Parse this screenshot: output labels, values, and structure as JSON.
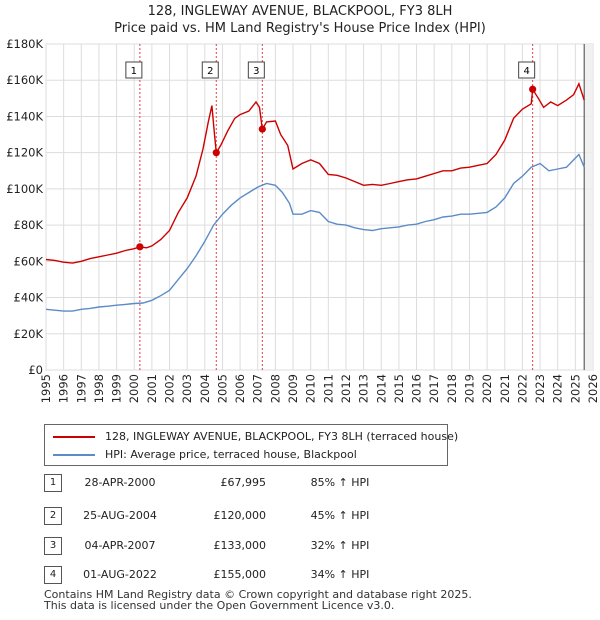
{
  "chart_data": {
    "type": "line",
    "title": "128, INGLEWAY AVENUE, BLACKPOOL, FY3 8LH",
    "subtitle": "Price paid vs. HM Land Registry's House Price Index (HPI)",
    "xlim": [
      1995,
      2026
    ],
    "ylim": [
      0,
      180000
    ],
    "x_ticks": [
      1995,
      1996,
      1997,
      1998,
      1999,
      2000,
      2001,
      2002,
      2003,
      2004,
      2005,
      2006,
      2007,
      2008,
      2009,
      2010,
      2011,
      2012,
      2013,
      2014,
      2015,
      2016,
      2017,
      2018,
      2019,
      2020,
      2021,
      2022,
      2023,
      2024,
      2025,
      2026
    ],
    "y_ticks": [
      {
        "value": 0,
        "label": "£0"
      },
      {
        "value": 20000,
        "label": "£20K"
      },
      {
        "value": 40000,
        "label": "£40K"
      },
      {
        "value": 60000,
        "label": "£60K"
      },
      {
        "value": 80000,
        "label": "£80K"
      },
      {
        "value": 100000,
        "label": "£100K"
      },
      {
        "value": 120000,
        "label": "£120K"
      },
      {
        "value": 140000,
        "label": "£140K"
      },
      {
        "value": 160000,
        "label": "£160K"
      },
      {
        "value": 180000,
        "label": "£180K"
      }
    ],
    "grid": true,
    "series": [
      {
        "name": "128, INGLEWAY AVENUE, BLACKPOOL, FY3 8LH (terraced house)",
        "color": "#cc0000",
        "points": [
          [
            1995.0,
            61000
          ],
          [
            1995.5,
            60500
          ],
          [
            1996.0,
            59500
          ],
          [
            1996.5,
            59000
          ],
          [
            1997.0,
            60000
          ],
          [
            1997.5,
            61500
          ],
          [
            1998.0,
            62500
          ],
          [
            1998.5,
            63500
          ],
          [
            1999.0,
            64500
          ],
          [
            1999.5,
            66000
          ],
          [
            2000.0,
            67000
          ],
          [
            2000.32,
            67995
          ],
          [
            2000.7,
            67500
          ],
          [
            2001.0,
            68500
          ],
          [
            2001.5,
            72000
          ],
          [
            2002.0,
            77000
          ],
          [
            2002.5,
            87000
          ],
          [
            2003.0,
            95000
          ],
          [
            2003.5,
            107000
          ],
          [
            2003.9,
            122000
          ],
          [
            2004.2,
            137000
          ],
          [
            2004.4,
            146000
          ],
          [
            2004.55,
            130000
          ],
          [
            2004.65,
            120000
          ],
          [
            2004.9,
            124000
          ],
          [
            2005.3,
            132000
          ],
          [
            2005.7,
            139000
          ],
          [
            2006.0,
            141000
          ],
          [
            2006.5,
            143000
          ],
          [
            2006.9,
            148000
          ],
          [
            2007.1,
            145000
          ],
          [
            2007.26,
            133000
          ],
          [
            2007.5,
            137000
          ],
          [
            2008.0,
            137500
          ],
          [
            2008.3,
            130000
          ],
          [
            2008.7,
            124000
          ],
          [
            2009.0,
            111000
          ],
          [
            2009.5,
            114000
          ],
          [
            2010.0,
            116000
          ],
          [
            2010.5,
            114000
          ],
          [
            2011.0,
            108000
          ],
          [
            2011.5,
            107500
          ],
          [
            2012.0,
            106000
          ],
          [
            2012.5,
            104000
          ],
          [
            2013.0,
            102000
          ],
          [
            2013.5,
            102500
          ],
          [
            2014.0,
            102000
          ],
          [
            2014.5,
            103000
          ],
          [
            2015.0,
            104000
          ],
          [
            2015.5,
            105000
          ],
          [
            2016.0,
            105500
          ],
          [
            2016.5,
            107000
          ],
          [
            2017.0,
            108500
          ],
          [
            2017.5,
            110000
          ],
          [
            2018.0,
            110000
          ],
          [
            2018.5,
            111500
          ],
          [
            2019.0,
            112000
          ],
          [
            2019.5,
            113000
          ],
          [
            2020.0,
            114000
          ],
          [
            2020.5,
            119000
          ],
          [
            2021.0,
            127000
          ],
          [
            2021.5,
            139000
          ],
          [
            2022.0,
            144000
          ],
          [
            2022.5,
            147000
          ],
          [
            2022.58,
            155000
          ],
          [
            2022.9,
            150000
          ],
          [
            2023.2,
            145000
          ],
          [
            2023.6,
            148000
          ],
          [
            2024.0,
            146000
          ],
          [
            2024.5,
            149000
          ],
          [
            2024.9,
            152000
          ],
          [
            2025.2,
            158000
          ],
          [
            2025.5,
            149000
          ]
        ]
      },
      {
        "name": "HPI: Average price, terraced house, Blackpool",
        "color": "#5b8cc8",
        "points": [
          [
            1995.0,
            33500
          ],
          [
            1995.5,
            33000
          ],
          [
            1996.0,
            32500
          ],
          [
            1996.5,
            32500
          ],
          [
            1997.0,
            33500
          ],
          [
            1997.5,
            34000
          ],
          [
            1998.0,
            34800
          ],
          [
            1998.5,
            35200
          ],
          [
            1999.0,
            35800
          ],
          [
            1999.5,
            36200
          ],
          [
            2000.0,
            36700
          ],
          [
            2000.5,
            37000
          ],
          [
            2001.0,
            38500
          ],
          [
            2001.5,
            41000
          ],
          [
            2002.0,
            44000
          ],
          [
            2002.5,
            50000
          ],
          [
            2003.0,
            56000
          ],
          [
            2003.5,
            63000
          ],
          [
            2004.0,
            71000
          ],
          [
            2004.5,
            80000
          ],
          [
            2005.0,
            86000
          ],
          [
            2005.5,
            91000
          ],
          [
            2006.0,
            95000
          ],
          [
            2006.5,
            98000
          ],
          [
            2007.0,
            101000
          ],
          [
            2007.5,
            103000
          ],
          [
            2008.0,
            102000
          ],
          [
            2008.4,
            98000
          ],
          [
            2008.8,
            92000
          ],
          [
            2009.0,
            86000
          ],
          [
            2009.5,
            86000
          ],
          [
            2010.0,
            88000
          ],
          [
            2010.5,
            87000
          ],
          [
            2011.0,
            82000
          ],
          [
            2011.5,
            80500
          ],
          [
            2012.0,
            80000
          ],
          [
            2012.5,
            78500
          ],
          [
            2013.0,
            77500
          ],
          [
            2013.5,
            77000
          ],
          [
            2014.0,
            78000
          ],
          [
            2014.5,
            78500
          ],
          [
            2015.0,
            79000
          ],
          [
            2015.5,
            80000
          ],
          [
            2016.0,
            80500
          ],
          [
            2016.5,
            82000
          ],
          [
            2017.0,
            83000
          ],
          [
            2017.5,
            84500
          ],
          [
            2018.0,
            85000
          ],
          [
            2018.5,
            86000
          ],
          [
            2019.0,
            86000
          ],
          [
            2019.5,
            86500
          ],
          [
            2020.0,
            87000
          ],
          [
            2020.5,
            90000
          ],
          [
            2021.0,
            95000
          ],
          [
            2021.5,
            103000
          ],
          [
            2022.0,
            107000
          ],
          [
            2022.5,
            112000
          ],
          [
            2023.0,
            114000
          ],
          [
            2023.5,
            110000
          ],
          [
            2024.0,
            111000
          ],
          [
            2024.5,
            112000
          ],
          [
            2024.9,
            116000
          ],
          [
            2025.2,
            119000
          ],
          [
            2025.5,
            112000
          ]
        ]
      }
    ],
    "sales": [
      {
        "num": "1",
        "x": 2000.32,
        "price": 67995
      },
      {
        "num": "2",
        "x": 2004.65,
        "price": 120000
      },
      {
        "num": "3",
        "x": 2007.26,
        "price": 133000
      },
      {
        "num": "4",
        "x": 2022.58,
        "price": 155000
      }
    ],
    "projection_start": 2025.5
  },
  "legend": {
    "property_label": "128, INGLEWAY AVENUE, BLACKPOOL, FY3 8LH (terraced house)",
    "hpi_label": "HPI: Average price, terraced house, Blackpool"
  },
  "transactions": [
    {
      "num": "1",
      "date": "28-APR-2000",
      "price": "£67,995",
      "hpi": "85% ↑ HPI"
    },
    {
      "num": "2",
      "date": "25-AUG-2004",
      "price": "£120,000",
      "hpi": "45% ↑ HPI"
    },
    {
      "num": "3",
      "date": "04-APR-2007",
      "price": "£133,000",
      "hpi": "32% ↑ HPI"
    },
    {
      "num": "4",
      "date": "01-AUG-2022",
      "price": "£155,000",
      "hpi": "34% ↑ HPI"
    }
  ],
  "footer": {
    "line1": "Contains HM Land Registry data © Crown copyright and database right 2025.",
    "line2": "This data is licensed under the Open Government Licence v3.0."
  }
}
